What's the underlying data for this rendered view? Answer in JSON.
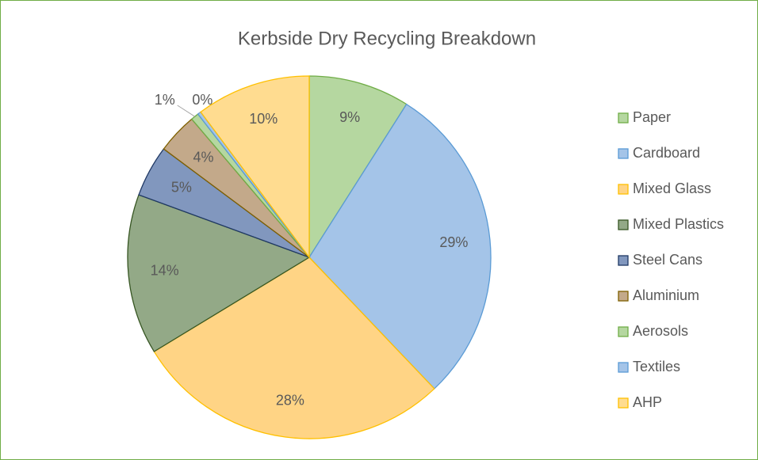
{
  "chart_data": {
    "type": "pie",
    "title": "Kerbside Dry Recycling Breakdown",
    "categories": [
      "Paper",
      "Cardboard",
      "Mixed Glass",
      "Mixed Plastics",
      "Steel Cans",
      "Aluminium",
      "Aerosols",
      "Textiles",
      "AHP"
    ],
    "values": [
      9.0,
      28.9,
      28.4,
      14.3,
      4.6,
      3.6,
      0.7,
      0.3,
      10.2
    ],
    "value_labels": [
      "9%",
      "29%",
      "28%",
      "14%",
      "5%",
      "4%",
      "1%",
      "0%",
      "10%"
    ],
    "colors": [
      "#b5d7a0",
      "#a4c4e8",
      "#ffd485",
      "#93a987",
      "#8197be",
      "#c3a98a",
      "#b5d7a0",
      "#a4c4e8",
      "#ffdc90"
    ],
    "edge_colors": [
      "#70ad47",
      "#5b9bd5",
      "#ffc000",
      "#375623",
      "#1f3864",
      "#7f6000",
      "#70ad47",
      "#5b9bd5",
      "#ffc000"
    ],
    "legend": "right"
  }
}
